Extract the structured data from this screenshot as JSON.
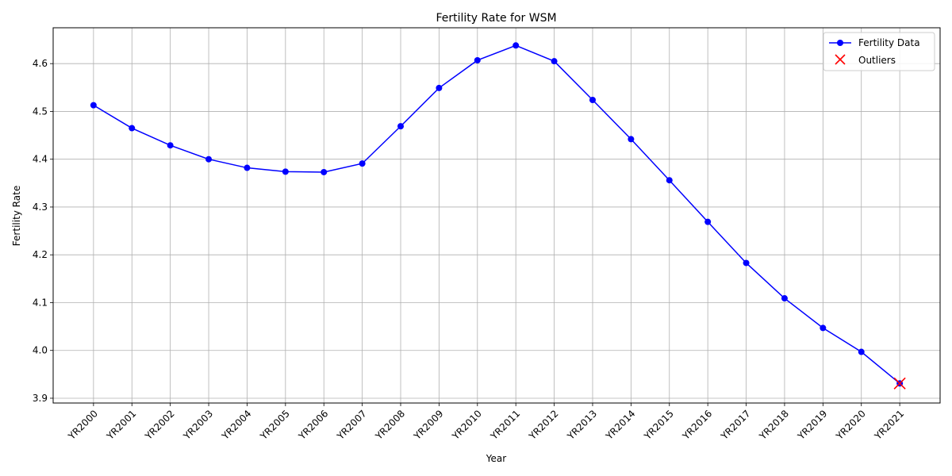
{
  "chart_data": {
    "type": "line",
    "title": "Fertility Rate for WSM",
    "xlabel": "Year",
    "ylabel": "Fertility Rate",
    "categories": [
      "YR2000",
      "YR2001",
      "YR2002",
      "YR2003",
      "YR2004",
      "YR2005",
      "YR2006",
      "YR2007",
      "YR2008",
      "YR2009",
      "YR2010",
      "YR2011",
      "YR2012",
      "YR2013",
      "YR2014",
      "YR2015",
      "YR2016",
      "YR2017",
      "YR2018",
      "YR2019",
      "YR2020",
      "YR2021"
    ],
    "ylim": [
      3.89,
      4.675
    ],
    "yticks": [
      3.9,
      4.0,
      4.1,
      4.2,
      4.3,
      4.4,
      4.5,
      4.6
    ],
    "ytick_labels": [
      "3.9",
      "4.0",
      "4.1",
      "4.2",
      "4.3",
      "4.4",
      "4.5",
      "4.6"
    ],
    "grid": true,
    "legend_position": "top-right",
    "series": [
      {
        "name": "Fertility Data",
        "color": "#0000ff",
        "marker": "circle",
        "values": [
          4.513,
          4.465,
          4.429,
          4.4,
          4.382,
          4.374,
          4.373,
          4.391,
          4.469,
          4.549,
          4.607,
          4.638,
          4.605,
          4.524,
          4.442,
          4.356,
          4.269,
          4.183,
          4.109,
          4.047,
          3.997,
          3.931
        ]
      }
    ],
    "outliers": {
      "name": "Outliers",
      "color": "#ff0000",
      "marker": "x",
      "points": [
        {
          "x": "YR2021",
          "y": 3.931
        }
      ]
    }
  }
}
